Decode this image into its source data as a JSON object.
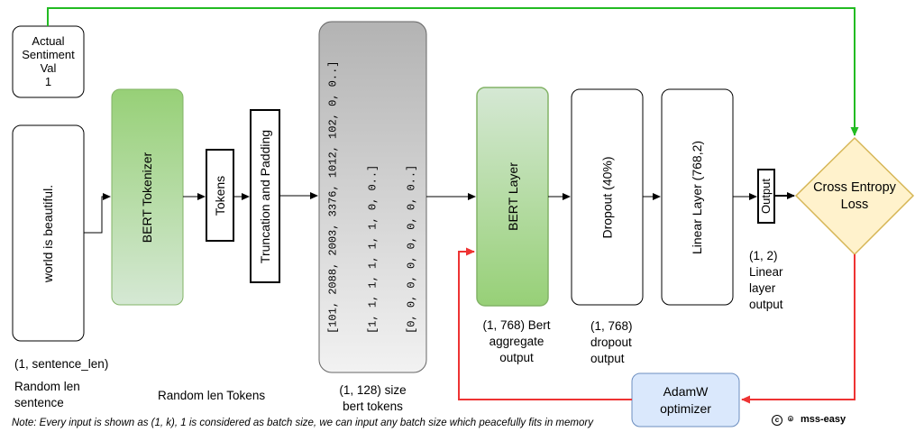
{
  "colors": {
    "green_arrow": "#22bb22",
    "red_arrow": "#ee3333",
    "tokenizer_fill_top": "#97d077",
    "tokenizer_fill_bottom": "#d5e8d4",
    "bert_border": "#82b366",
    "tokens_fill_top": "#b3b3b3",
    "tokens_fill_bottom": "#f2f2f2",
    "diamond_fill": "#fff2cc",
    "diamond_border": "#d6b656",
    "adamw_fill": "#dae8fc",
    "adamw_border": "#6c8ebf"
  },
  "actual_sentiment": [
    "Actual",
    "Sentiment",
    "Val",
    "1"
  ],
  "sentence": {
    "text": "world is beautiful.",
    "shape": "(1, sentence_len)",
    "caption": [
      "Random len",
      "sentence"
    ]
  },
  "tokenizer": {
    "label": "BERT Tokenizer",
    "caption": "Random len Tokens"
  },
  "tokens_label": "Tokens",
  "truncation_label": "Truncation and Padding",
  "bert_tokens": {
    "rows": [
      "[101, 2088, 2003, 3376, 1012, 102, 0, 0..]",
      "[1, 1, 1, 1, 1, 1, 0, 0..]",
      "[0, 0, 0, 0, 0, 0, 0, 0..]"
    ],
    "caption": [
      "(1, 128) size",
      "bert tokens"
    ]
  },
  "bert_layer": {
    "label": "BERT Layer",
    "caption": [
      "(1, 768) Bert",
      "aggregate",
      "output"
    ]
  },
  "dropout": {
    "label": "Dropout (40%)",
    "caption": [
      "(1, 768)",
      "dropout",
      "output"
    ]
  },
  "linear": {
    "label": "Linear Layer (768,2)",
    "caption": [
      "(1, 2)",
      "Linear",
      "layer",
      "output"
    ]
  },
  "output_label": "Output",
  "loss_label": [
    "Cross Entropy",
    "Loss"
  ],
  "optimizer_label": [
    "AdamW",
    "optimizer"
  ],
  "note": "Note: Every input is shown as (1, k),  1 is considered as batch size, we can input any batch size which peacefully fits in memory",
  "credit": {
    "cc": "c",
    "gh": "⌾",
    "name": "mss-easy"
  }
}
